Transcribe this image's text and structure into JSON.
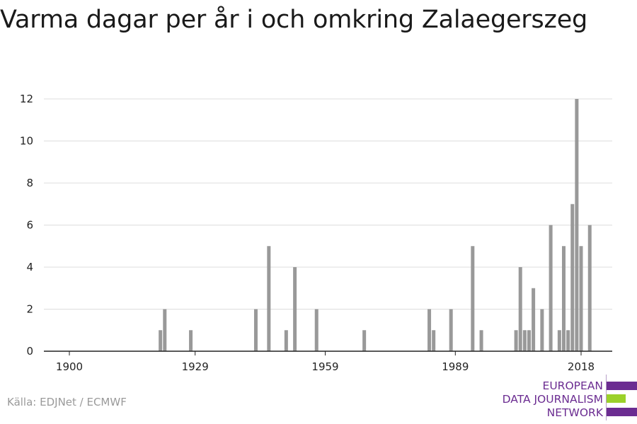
{
  "title": "Varma dagar per år i och omkring Zalaegerszeg",
  "source": "Källa: EDJNet / ECMWF",
  "logo": {
    "lines": [
      "EUROPEAN",
      "DATA JOURNALISM",
      "NETWORK"
    ],
    "colors": {
      "purple": "#6b2c91",
      "green": "#9bd12a"
    }
  },
  "colors": {
    "bar": "#999999",
    "grid": "#dddddd",
    "axis": "#222222",
    "text": "#222222"
  },
  "chart_data": {
    "type": "bar",
    "title": "Varma dagar per år i och omkring Zalaegerszeg",
    "xlabel": "",
    "ylabel": "",
    "xlim": [
      1894,
      2025
    ],
    "ylim": [
      0,
      12
    ],
    "x_ticks": [
      1900,
      1929,
      1959,
      1989,
      2018
    ],
    "y_ticks": [
      0,
      2,
      4,
      6,
      8,
      10,
      12
    ],
    "grid": true,
    "x": [
      1921,
      1922,
      1928,
      1943,
      1946,
      1950,
      1952,
      1957,
      1968,
      1983,
      1984,
      1988,
      1993,
      1995,
      2003,
      2004,
      2005,
      2006,
      2007,
      2009,
      2011,
      2013,
      2014,
      2015,
      2016,
      2017,
      2018,
      2020
    ],
    "values": [
      1,
      2,
      1,
      2,
      5,
      1,
      4,
      2,
      1,
      2,
      1,
      2,
      5,
      1,
      1,
      4,
      1,
      1,
      3,
      2,
      6,
      1,
      5,
      1,
      7,
      12,
      5,
      6
    ]
  }
}
